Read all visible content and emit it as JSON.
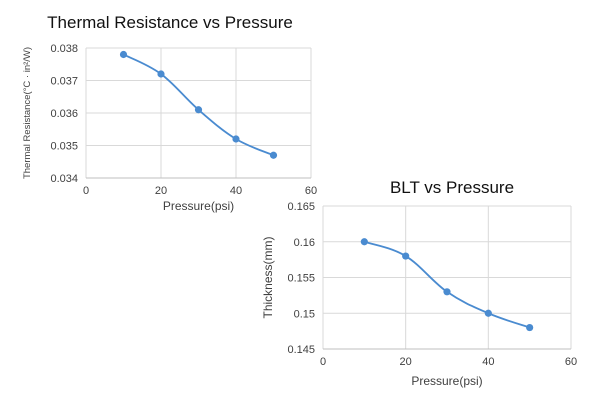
{
  "chart_data": [
    {
      "type": "line",
      "title": "Thermal Resistance vs Pressure",
      "xlabel": "Pressure(psi)",
      "ylabel": "Thermal Resistance(°C · in²/W)",
      "xlim": [
        0,
        60
      ],
      "ylim": [
        0.034,
        0.038
      ],
      "x_ticks": [
        0,
        20,
        40,
        60
      ],
      "y_ticks": [
        "0.034",
        "0.035",
        "0.036",
        "0.037",
        "0.038"
      ],
      "grid": true,
      "legend": "none",
      "color": "#4a8bd0",
      "series": [
        {
          "name": "Thermal Resistance",
          "x": [
            10,
            20,
            30,
            40,
            50
          ],
          "values": [
            0.0378,
            0.0372,
            0.0361,
            0.0352,
            0.0347
          ]
        }
      ]
    },
    {
      "type": "line",
      "title": "BLT vs Pressure",
      "xlabel": "Pressure(psi)",
      "ylabel": "Thickness(mm)",
      "xlim": [
        0,
        60
      ],
      "ylim": [
        0.145,
        0.165
      ],
      "x_ticks": [
        0,
        20,
        40,
        60
      ],
      "y_ticks": [
        "0.145",
        "0.15",
        "0.155",
        "0.16",
        "0.165"
      ],
      "grid": true,
      "legend": "none",
      "color": "#4a8bd0",
      "series": [
        {
          "name": "Thickness",
          "x": [
            10,
            20,
            30,
            40,
            50
          ],
          "values": [
            0.16,
            0.158,
            0.153,
            0.15,
            0.148
          ]
        }
      ]
    }
  ]
}
